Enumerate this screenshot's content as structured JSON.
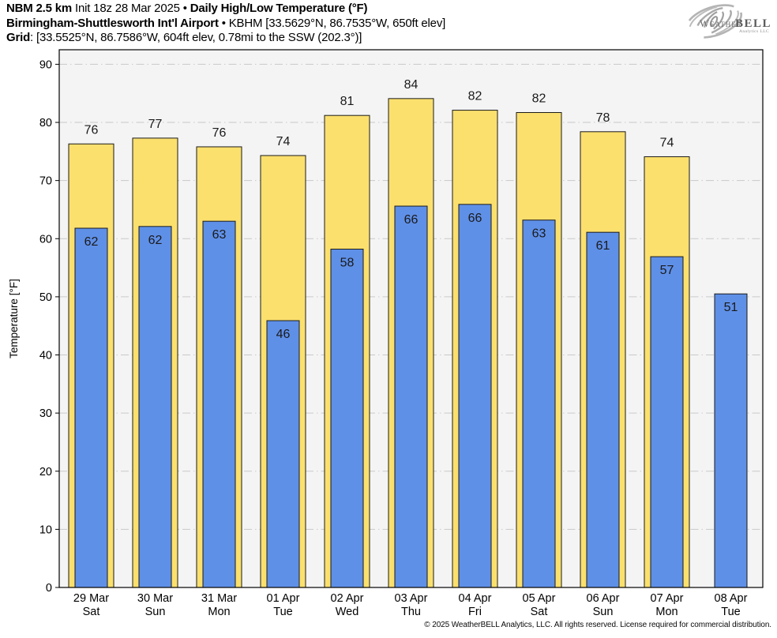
{
  "header": {
    "line1": {
      "model": "NBM 2.5 km",
      "init": " Init 18z 28 Mar 2025 • ",
      "product": "Daily High/Low Temperature (°F)"
    },
    "line2": {
      "station": "Birmingham-Shuttlesworth Int'l Airport",
      "details": " • KBHM [33.5629°N, 86.7535°W, 650ft elev]"
    },
    "line3": {
      "label": "Grid",
      "details": ": [33.5525°N, 86.7586°W, 604ft elev, 0.78mi to the SSW (202.3°)]"
    }
  },
  "logo": {
    "part1": "Weather",
    "part2": "BELL",
    "tagline": "Analytics LLC"
  },
  "footer": {
    "copyright": "© 2025 WeatherBELL Analytics, LLC. All rights reserved. License required for commercial distribution."
  },
  "chart_data": {
    "type": "bar",
    "title": "Daily High/Low Temperature (°F)",
    "xlabel": "",
    "ylabel": "Temperature [°F]",
    "ylim": [
      0,
      92.5
    ],
    "yticks": [
      0,
      10,
      20,
      30,
      40,
      50,
      60,
      70,
      80,
      90
    ],
    "grid": true,
    "legend_position": "none",
    "plot_bg": "#f4f4f4",
    "grid_color": "#c9c9c9",
    "bar_border": "#1a1a1a",
    "series": [
      {
        "name": "Daily High",
        "color": "#fbe06e"
      },
      {
        "name": "Daily Low",
        "color": "#5f90e8"
      }
    ],
    "days": [
      {
        "date": "29 Mar",
        "weekday": "Sat",
        "high": 76,
        "low": 62,
        "high_bar": 76.3,
        "low_bar": 61.8
      },
      {
        "date": "30 Mar",
        "weekday": "Sun",
        "high": 77,
        "low": 62,
        "high_bar": 77.3,
        "low_bar": 62.1
      },
      {
        "date": "31 Mar",
        "weekday": "Mon",
        "high": 76,
        "low": 63,
        "high_bar": 75.8,
        "low_bar": 63.0
      },
      {
        "date": "01 Apr",
        "weekday": "Tue",
        "high": 74,
        "low": 46,
        "high_bar": 74.3,
        "low_bar": 45.9
      },
      {
        "date": "02 Apr",
        "weekday": "Wed",
        "high": 81,
        "low": 58,
        "high_bar": 81.2,
        "low_bar": 58.2
      },
      {
        "date": "03 Apr",
        "weekday": "Thu",
        "high": 84,
        "low": 66,
        "high_bar": 84.1,
        "low_bar": 65.6
      },
      {
        "date": "04 Apr",
        "weekday": "Fri",
        "high": 82,
        "low": 66,
        "high_bar": 82.1,
        "low_bar": 65.9
      },
      {
        "date": "05 Apr",
        "weekday": "Sat",
        "high": 82,
        "low": 63,
        "high_bar": 81.7,
        "low_bar": 63.2
      },
      {
        "date": "06 Apr",
        "weekday": "Sun",
        "high": 78,
        "low": 61,
        "high_bar": 78.4,
        "low_bar": 61.1
      },
      {
        "date": "07 Apr",
        "weekday": "Mon",
        "high": 74,
        "low": 57,
        "high_bar": 74.1,
        "low_bar": 56.9
      },
      {
        "date": "08 Apr",
        "weekday": "Tue",
        "high": null,
        "low": 51,
        "high_bar": null,
        "low_bar": 50.5
      }
    ]
  }
}
